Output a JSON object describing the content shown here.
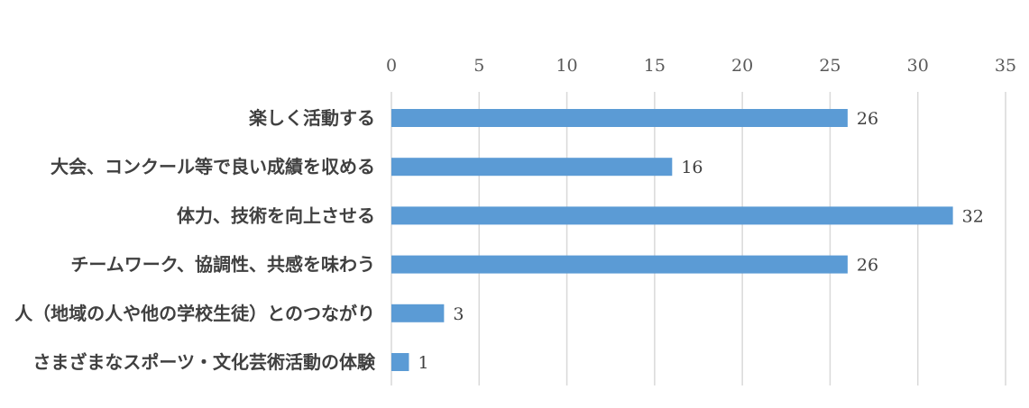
{
  "chart_data": {
    "type": "bar",
    "orientation": "horizontal",
    "categories": [
      "楽しく活動する",
      "大会、コンクール等で良い成績を収める",
      "体力、技術を向上させる",
      "チームワーク、協調性、共感を味わう",
      "人（地域の人や他の学校生徒）とのつながり",
      "さまざまなスポーツ・文化芸術活動の体験"
    ],
    "values": [
      26,
      16,
      32,
      26,
      3,
      1
    ],
    "xlim": [
      0,
      35
    ],
    "xticks": [
      0,
      5,
      10,
      15,
      20,
      25,
      30,
      35
    ],
    "tick_labels": [
      "0",
      "5",
      "10",
      "15",
      "20",
      "25",
      "30",
      "35"
    ],
    "axis_position": "top",
    "grid": true,
    "data_labels": true,
    "colors": {
      "bar": "#5b9bd5"
    }
  }
}
